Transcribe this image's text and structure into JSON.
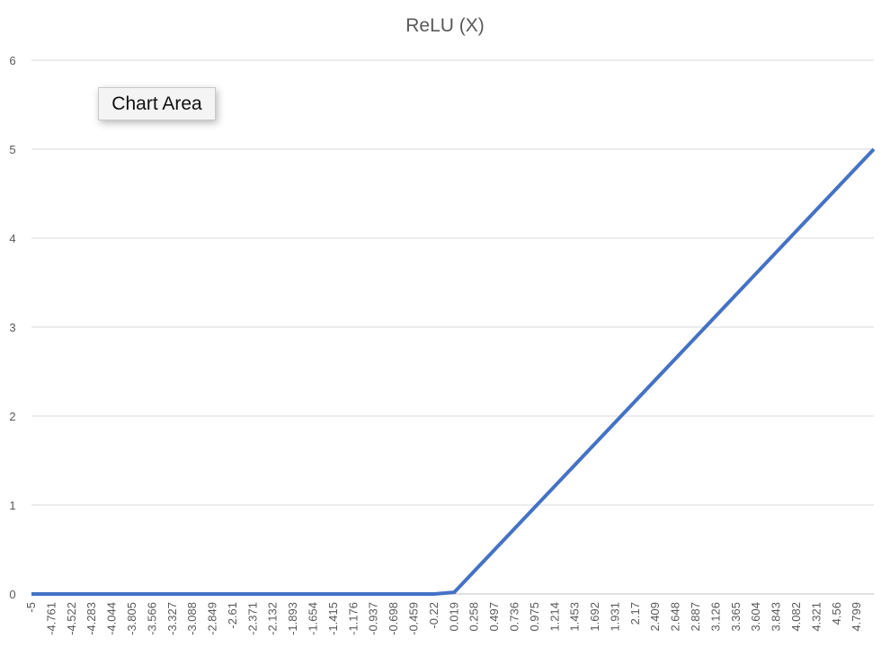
{
  "chart_data": {
    "type": "line",
    "title": "ReLU (X)",
    "xlabel": "",
    "ylabel": "",
    "ylim": [
      0,
      6
    ],
    "y_ticks": [
      0,
      1,
      2,
      3,
      4,
      5,
      6
    ],
    "grid": "horizontal",
    "x_tick_labels": [
      "-5",
      "-4.761",
      "-4.522",
      "-4.283",
      "-4.044",
      "-3.805",
      "-3.566",
      "-3.327",
      "-3.088",
      "-2.849",
      "-2.61",
      "-2.371",
      "-2.132",
      "-1.893",
      "-1.654",
      "-1.415",
      "-1.176",
      "-0.937",
      "-0.698",
      "-0.459",
      "-0.22",
      "0.019",
      "0.258",
      "0.497",
      "0.736",
      "0.975",
      "1.214",
      "1.453",
      "1.692",
      "1.931",
      "2.17",
      "2.409",
      "2.648",
      "2.887",
      "3.126",
      "3.365",
      "3.604",
      "3.843",
      "4.082",
      "4.321",
      "4.56",
      "4.799"
    ],
    "series": [
      {
        "x": [
          -5,
          -0.22,
          0.019,
          5
        ],
        "values": [
          0,
          0,
          0.019,
          5
        ],
        "color": "#4472C4"
      }
    ]
  },
  "tooltip": {
    "text": "Chart Area"
  }
}
